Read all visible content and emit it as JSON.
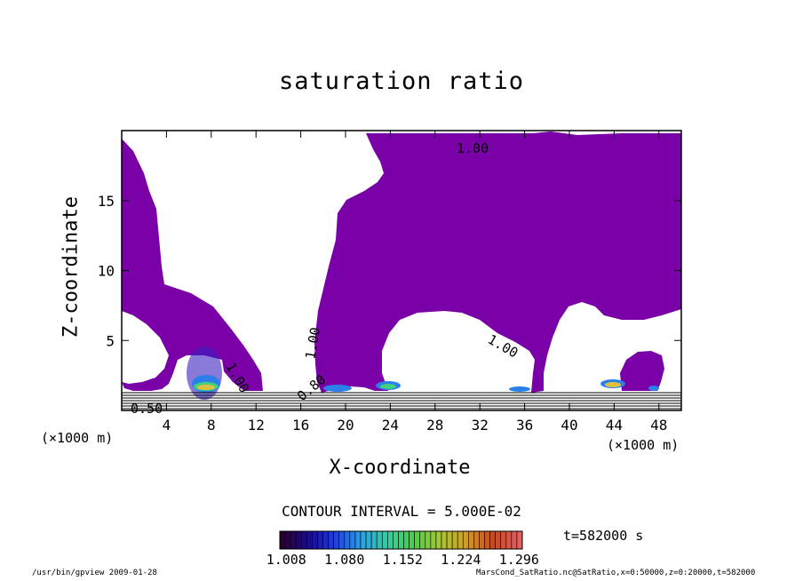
{
  "chart_data": {
    "type": "contour",
    "title": "saturation ratio",
    "xlabel": "X-coordinate",
    "ylabel": "Z-coordinate",
    "x_unit_label": "(×1000 m)",
    "xlim": [
      0,
      50
    ],
    "ylim": [
      0,
      20
    ],
    "x_ticks": [
      "4",
      "8",
      "12",
      "16",
      "20",
      "24",
      "28",
      "32",
      "36",
      "40",
      "44",
      "48"
    ],
    "y_ticks": [
      "5",
      "10",
      "15"
    ],
    "contour_labels": [
      "1.00",
      "1.00",
      "1.00",
      "1.00",
      "0.50",
      "0.80"
    ],
    "contour_interval_text": "CONTOUR INTERVAL = 5.000E-02",
    "colorbar": {
      "labels": [
        "1.008",
        "1.080",
        "1.152",
        "1.224",
        "1.296"
      ],
      "min": 1.0,
      "max": 1.3,
      "colors": [
        "#2a0033",
        "#1a0a8a",
        "#1f3fd8",
        "#2aa0e8",
        "#30d0a0",
        "#4ad040",
        "#a8c830",
        "#d09a28",
        "#c04a20",
        "#e06060"
      ]
    },
    "fill_color": "#7a00a8",
    "time_label": "t=582000 s"
  },
  "footer": {
    "left": "/usr/bin/gpview   2009-01-28",
    "right": "MarsCond_SatRatio.nc@SatRatio,x=0:50000,z=0:20000,t=582000"
  }
}
